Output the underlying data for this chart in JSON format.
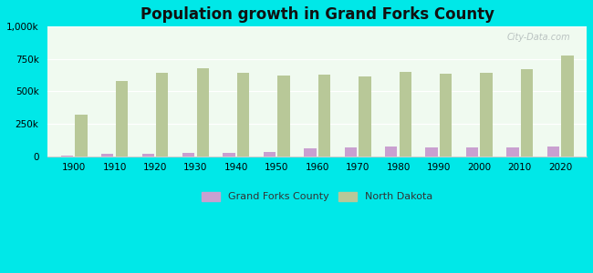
{
  "title": "Population growth in Grand Forks County",
  "years": [
    1900,
    1910,
    1920,
    1930,
    1940,
    1950,
    1960,
    1970,
    1980,
    1990,
    2000,
    2010,
    2020
  ],
  "grand_forks": [
    7000,
    18000,
    20000,
    23000,
    27000,
    35000,
    60000,
    66000,
    71000,
    67000,
    67000,
    66000,
    71000
  ],
  "north_dakota": [
    319000,
    577000,
    647000,
    681000,
    642000,
    620000,
    632000,
    618000,
    652000,
    638000,
    642000,
    672000,
    779000
  ],
  "bar_color_gf": "#c9a0d0",
  "bar_color_nd": "#b8c898",
  "background_plot_top": "#f0faf0",
  "background_plot_bottom": "#d8f0e8",
  "background_fig": "#00e8e8",
  "ylim": [
    0,
    1000000
  ],
  "yticks": [
    0,
    250000,
    500000,
    750000,
    1000000
  ],
  "bar_width": 0.3,
  "bar_gap": 0.05,
  "watermark": "City-Data.com",
  "legend_gf": "Grand Forks County",
  "legend_nd": "North Dakota",
  "grid_color": "#ffffff",
  "spine_color": "#cccccc"
}
